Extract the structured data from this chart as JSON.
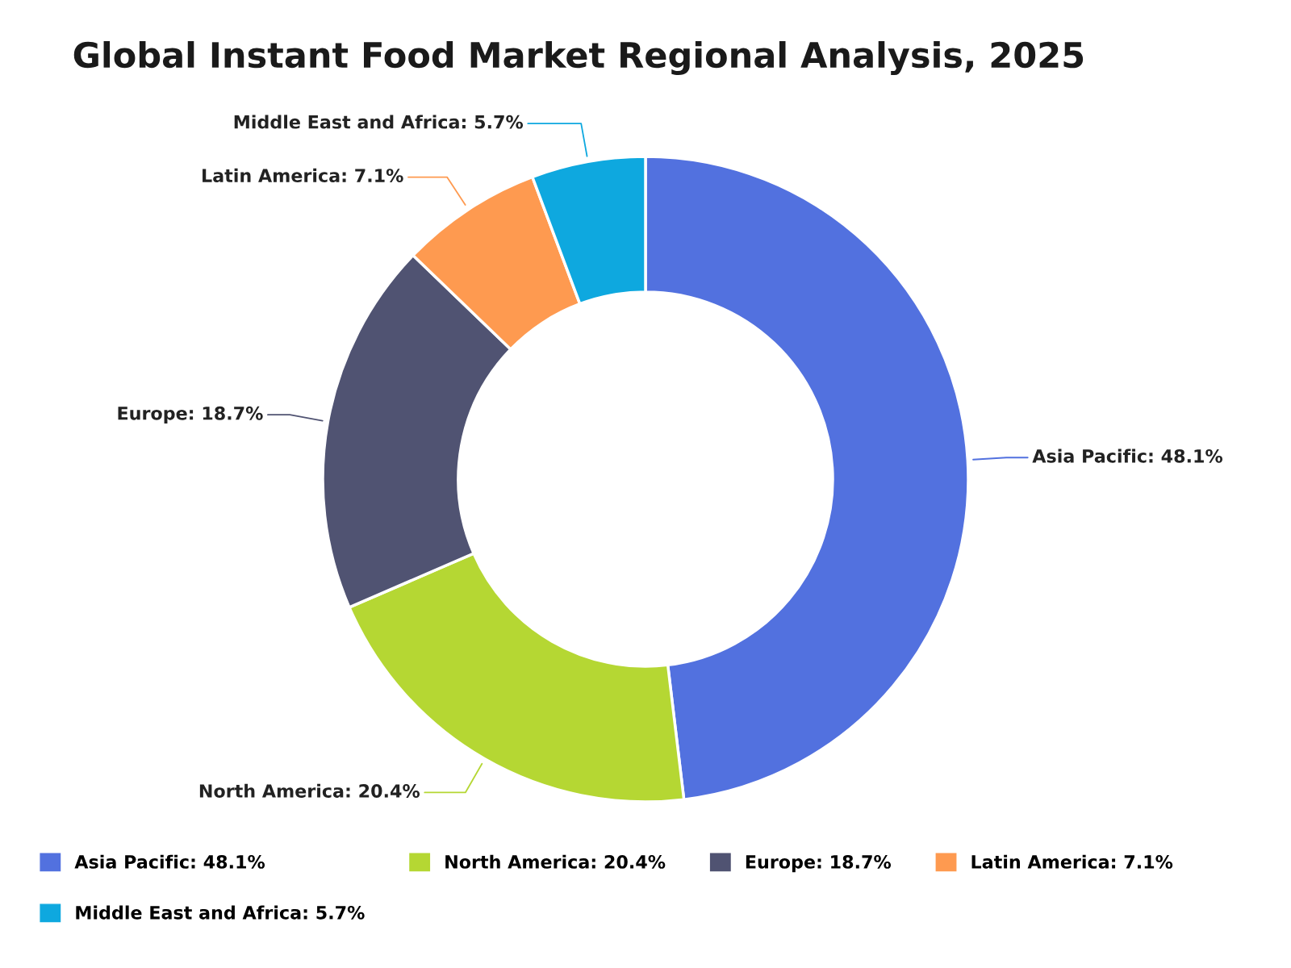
{
  "chart_data": {
    "type": "donut",
    "title": "Global Instant Food Market Regional Analysis, 2025",
    "categories": [
      "Asia Pacific",
      "North America",
      "Europe",
      "Latin America",
      "Middle East and Africa"
    ],
    "values": [
      48.1,
      20.4,
      18.7,
      7.1,
      5.7
    ],
    "value_labels": [
      "48.1%",
      "20.4%",
      "18.7%",
      "7.1%",
      "5.7%"
    ],
    "colors": [
      "#5271df",
      "#b5d733",
      "#505372",
      "#fe9a50",
      "#0ea8df"
    ],
    "legend": "bottom"
  }
}
